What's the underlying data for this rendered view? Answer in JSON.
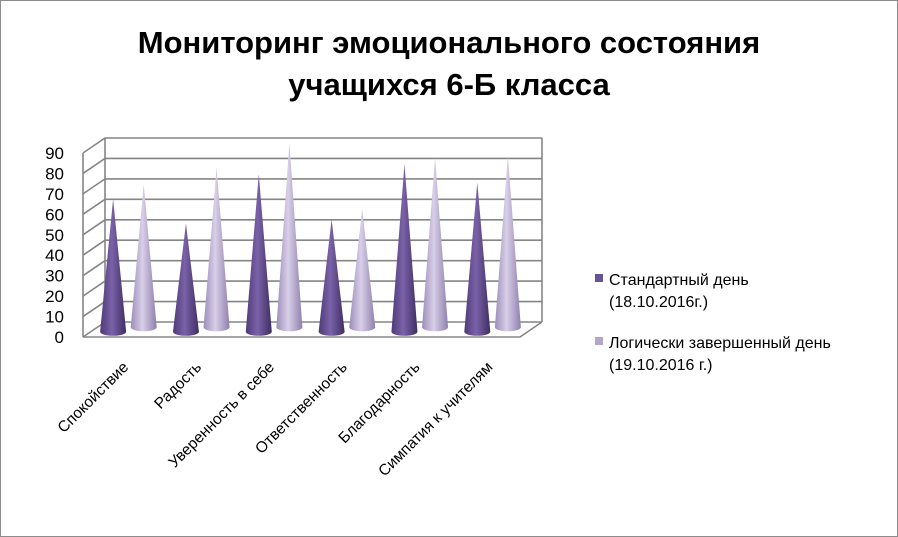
{
  "chart_data": {
    "type": "bar",
    "title": [
      "Мониторинг эмоционального состояния",
      "учащихся 6-Б класса"
    ],
    "categories": [
      "Спокойствие",
      "Радость",
      "Уверенность в себе",
      "Ответственность",
      "Благодарность",
      "Симпатия к учителям"
    ],
    "series": [
      {
        "name_lines": [
          "Стандартный день",
          "(18.10.2016г.)"
        ],
        "color": "#6a5296",
        "values": [
          65,
          53,
          77,
          55,
          82,
          73
        ]
      },
      {
        "name_lines": [
          "Логически завершенный день",
          "(19.10.2016 г.)"
        ],
        "color": "#b4a7cc",
        "values": [
          70,
          78,
          90,
          58,
          83,
          84
        ]
      }
    ],
    "yticks": [
      0,
      10,
      20,
      30,
      40,
      50,
      60,
      70,
      80,
      90
    ],
    "ylim": [
      0,
      90
    ],
    "grid": true,
    "legend": "right"
  }
}
